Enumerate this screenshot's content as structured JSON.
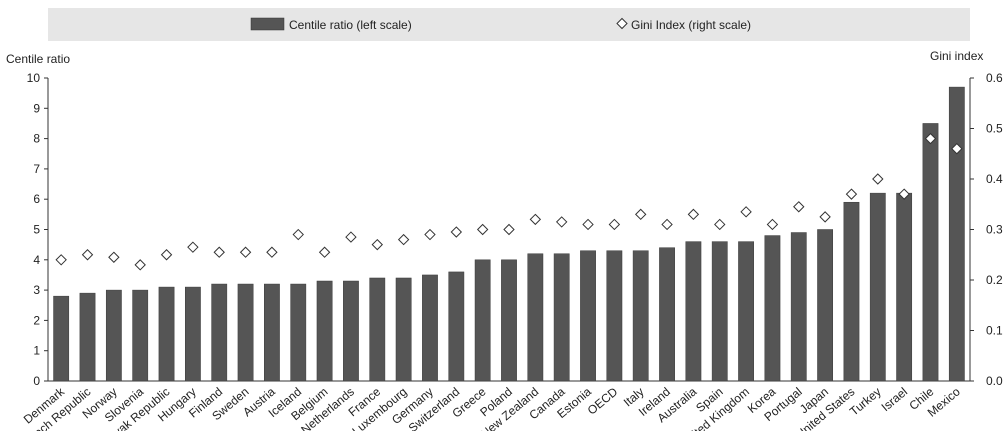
{
  "chart_data": {
    "type": "bar",
    "categories": [
      "Denmark",
      "Czech Republic",
      "Norway",
      "Slovenia",
      "Slovak Republic",
      "Hungary",
      "Finland",
      "Sweden",
      "Austria",
      "Iceland",
      "Belgium",
      "Netherlands",
      "France",
      "Luxembourg",
      "Germany",
      "Switzerland",
      "Greece",
      "Poland",
      "New Zealand",
      "Canada",
      "Estonia",
      "OECD",
      "Italy",
      "Ireland",
      "Australia",
      "Spain",
      "United Kingdom",
      "Korea",
      "Portugal",
      "Japan",
      "United States",
      "Turkey",
      "Israel",
      "Chile",
      "Mexico"
    ],
    "series": [
      {
        "name": "Centile ratio (left scale)",
        "axis": "left",
        "kind": "bar",
        "color": "#555555",
        "values": [
          2.8,
          2.9,
          3.0,
          3.0,
          3.1,
          3.1,
          3.2,
          3.2,
          3.2,
          3.2,
          3.3,
          3.3,
          3.4,
          3.4,
          3.5,
          3.6,
          4.0,
          4.0,
          4.2,
          4.2,
          4.3,
          4.3,
          4.3,
          4.4,
          4.6,
          4.6,
          4.6,
          4.8,
          4.9,
          5.0,
          5.9,
          6.2,
          6.2,
          8.5,
          9.7
        ]
      },
      {
        "name": "Gini Index (right scale)",
        "axis": "right",
        "kind": "marker",
        "marker": "diamond",
        "values": [
          0.24,
          0.25,
          0.245,
          0.23,
          0.25,
          0.265,
          0.255,
          0.255,
          0.255,
          0.29,
          0.255,
          0.285,
          0.27,
          0.28,
          0.29,
          0.295,
          0.3,
          0.3,
          0.32,
          0.315,
          0.31,
          0.31,
          0.33,
          0.31,
          0.33,
          0.31,
          0.335,
          0.31,
          0.345,
          0.325,
          0.37,
          0.4,
          0.37,
          0.48,
          0.46
        ]
      }
    ],
    "ylabel_left": "Centile ratio",
    "ylabel_right": "Gini index",
    "ylim_left": [
      0,
      10
    ],
    "yticks_left": [
      "0",
      "1",
      "2",
      "3",
      "4",
      "5",
      "6",
      "7",
      "8",
      "9",
      "10"
    ],
    "ylim_right": [
      0,
      0.6
    ],
    "yticks_right": [
      "0.0",
      "0.1",
      "0.2",
      "0.3",
      "0.4",
      "0.5",
      "0.6"
    ],
    "grid": false,
    "legend_position": "top-center"
  }
}
